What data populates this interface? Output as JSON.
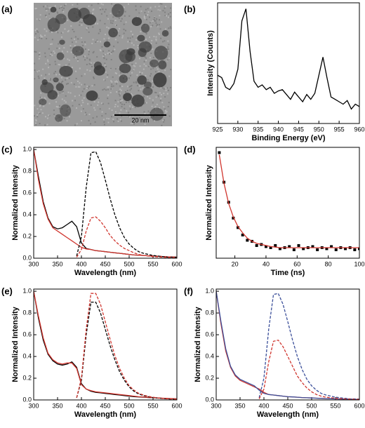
{
  "chart_data": [
    {
      "type": "image",
      "panel_label": "(a)",
      "scale_bar_label": "20 nm"
    },
    {
      "type": "line",
      "panel_label": "(b)",
      "xlabel": "Binding Energy (eV)",
      "ylabel": "Intensity (Counts)",
      "x": [
        925,
        926,
        927,
        928,
        929,
        930,
        931,
        932,
        933,
        934,
        935,
        936,
        937,
        938,
        939,
        940,
        941,
        942,
        943,
        944,
        945,
        946,
        947,
        948,
        949,
        950,
        951,
        952,
        953,
        954,
        955,
        956,
        957,
        958,
        959,
        960
      ],
      "series": [
        {
          "color": "#000000",
          "values": [
            40,
            38,
            30,
            28,
            33,
            45,
            85,
            95,
            60,
            35,
            30,
            32,
            28,
            30,
            25,
            27,
            28,
            24,
            20,
            26,
            22,
            18,
            24,
            20,
            25,
            40,
            55,
            38,
            22,
            20,
            18,
            16,
            19,
            12,
            16,
            14
          ]
        }
      ],
      "xlim": [
        925,
        960
      ],
      "xticks": [
        925,
        930,
        935,
        940,
        945,
        950,
        955,
        960
      ],
      "ylim": [
        0,
        100
      ]
    },
    {
      "type": "line",
      "panel_label": "(c)",
      "xlabel": "Wavelength (nm)",
      "ylabel": "Normalized Intensity",
      "x": [
        300,
        310,
        320,
        330,
        340,
        350,
        360,
        370,
        380,
        390,
        400,
        410,
        420,
        430,
        440,
        450,
        460,
        470,
        480,
        490,
        500,
        510,
        520,
        530,
        540,
        550,
        560,
        570,
        580,
        590,
        600
      ],
      "series": [
        {
          "color": "#000000",
          "values": [
            1.0,
            0.75,
            0.52,
            0.37,
            0.29,
            0.27,
            0.28,
            0.31,
            0.34,
            0.29,
            0.14,
            0.09,
            0.08,
            0.07,
            0.065,
            0.06,
            0.055,
            0.05,
            0.045,
            0.04,
            0.035,
            0.03,
            0.028,
            0.025,
            0.022,
            0.02,
            0.018,
            0.015,
            0.013,
            0.012,
            0.01
          ]
        },
        {
          "color": "#d0362f",
          "values": [
            1.0,
            0.72,
            0.5,
            0.36,
            0.28,
            0.25,
            0.22,
            0.19,
            0.16,
            0.13,
            0.1,
            0.085,
            0.08,
            0.07,
            0.065,
            0.06,
            0.055,
            0.05,
            0.045,
            0.04,
            0.035,
            0.03,
            0.028,
            0.025,
            0.022,
            0.02,
            0.018,
            0.015,
            0.013,
            0.012,
            0.01
          ]
        },
        {
          "color": "#000000",
          "dash": true,
          "values": [
            null,
            null,
            null,
            null,
            null,
            null,
            null,
            null,
            null,
            0.02,
            0.2,
            0.65,
            0.97,
            0.98,
            0.88,
            0.72,
            0.55,
            0.4,
            0.28,
            0.19,
            0.13,
            0.09,
            0.06,
            0.045,
            0.035,
            0.025,
            0.02,
            0.015,
            0.01,
            0.01,
            0.008
          ]
        },
        {
          "color": "#d0362f",
          "dash": true,
          "values": [
            null,
            null,
            null,
            null,
            null,
            null,
            null,
            null,
            null,
            0.01,
            0.08,
            0.25,
            0.37,
            0.38,
            0.34,
            0.28,
            0.21,
            0.16,
            0.12,
            0.09,
            0.07,
            0.05,
            0.035,
            0.025,
            0.02,
            0.015,
            0.012,
            0.01,
            0.008,
            0.006,
            0.005
          ]
        }
      ],
      "xlim": [
        300,
        600
      ],
      "xticks": [
        300,
        350,
        400,
        450,
        500,
        550,
        600
      ],
      "ylim": [
        0,
        1.02
      ],
      "yticks": [
        {
          "value": 0,
          "label": "0.0"
        },
        0.2,
        0.4,
        0.6,
        0.8,
        {
          "value": 1,
          "label": "1.0"
        }
      ]
    },
    {
      "type": "line",
      "panel_label": "(d)",
      "xlabel": "Time (ns)",
      "ylabel": "Normalized Intensity",
      "x": [
        10,
        13,
        16,
        19,
        22,
        25,
        28,
        31,
        34,
        37,
        40,
        43,
        46,
        49,
        52,
        55,
        58,
        61,
        64,
        67,
        70,
        73,
        76,
        79,
        82,
        85,
        88,
        91,
        94,
        97,
        100
      ],
      "series": [
        {
          "color": "#000000",
          "kind": "scatter",
          "values": [
            1.0,
            0.72,
            0.53,
            0.38,
            0.29,
            0.22,
            0.17,
            0.16,
            0.12,
            0.13,
            0.11,
            0.1,
            0.12,
            0.09,
            0.1,
            0.11,
            0.08,
            0.12,
            0.09,
            0.1,
            0.11,
            0.08,
            0.1,
            0.09,
            0.11,
            0.08,
            0.1,
            0.09,
            0.1,
            0.08,
            0.09
          ]
        },
        {
          "color": "#d0362f",
          "values": [
            0.98,
            0.71,
            0.52,
            0.39,
            0.3,
            0.24,
            0.19,
            0.16,
            0.14,
            0.13,
            0.12,
            0.11,
            0.105,
            0.1,
            0.1,
            0.1,
            0.1,
            0.1,
            0.1,
            0.1,
            0.1,
            0.1,
            0.1,
            0.1,
            0.1,
            0.1,
            0.1,
            0.1,
            0.1,
            0.1,
            0.1
          ]
        }
      ],
      "xlim": [
        8,
        100
      ],
      "xticks": [
        20,
        40,
        60,
        80,
        100
      ],
      "ylim": [
        0,
        1.05
      ]
    },
    {
      "type": "line",
      "panel_label": "(e)",
      "xlabel": "Wavelength (nm)",
      "ylabel": "Normalized Intensity",
      "x": [
        300,
        310,
        320,
        330,
        340,
        350,
        360,
        370,
        380,
        390,
        400,
        410,
        420,
        430,
        440,
        450,
        460,
        470,
        480,
        490,
        500,
        510,
        520,
        530,
        540,
        550,
        560,
        570,
        580,
        590,
        600
      ],
      "series": [
        {
          "color": "#000000",
          "values": [
            1.0,
            0.75,
            0.55,
            0.42,
            0.36,
            0.33,
            0.32,
            0.33,
            0.35,
            0.3,
            0.15,
            0.1,
            0.08,
            0.07,
            0.065,
            0.06,
            0.055,
            0.05,
            0.045,
            0.04,
            0.035,
            0.03,
            0.028,
            0.025,
            0.022,
            0.02,
            0.018,
            0.015,
            0.013,
            0.012,
            0.01
          ]
        },
        {
          "color": "#d0362f",
          "values": [
            1.0,
            0.77,
            0.57,
            0.43,
            0.37,
            0.34,
            0.33,
            0.34,
            0.34,
            0.29,
            0.14,
            0.1,
            0.085,
            0.075,
            0.07,
            0.065,
            0.06,
            0.055,
            0.05,
            0.045,
            0.04,
            0.035,
            0.03,
            0.027,
            0.024,
            0.021,
            0.019,
            0.016,
            0.014,
            0.012,
            0.01
          ]
        },
        {
          "color": "#000000",
          "dash": true,
          "values": [
            null,
            null,
            null,
            null,
            null,
            null,
            null,
            null,
            null,
            0.02,
            0.18,
            0.6,
            0.9,
            0.9,
            0.8,
            0.65,
            0.5,
            0.37,
            0.26,
            0.18,
            0.12,
            0.08,
            0.055,
            0.04,
            0.03,
            0.022,
            0.017,
            0.013,
            0.01,
            0.008,
            0.007
          ]
        },
        {
          "color": "#d0362f",
          "dash": true,
          "values": [
            null,
            null,
            null,
            null,
            null,
            null,
            null,
            null,
            null,
            0.02,
            0.2,
            0.65,
            0.98,
            0.98,
            0.88,
            0.72,
            0.56,
            0.41,
            0.29,
            0.2,
            0.13,
            0.09,
            0.06,
            0.045,
            0.033,
            0.025,
            0.018,
            0.014,
            0.011,
            0.009,
            0.007
          ]
        }
      ],
      "xlim": [
        300,
        600
      ],
      "xticks": [
        300,
        350,
        400,
        450,
        500,
        550,
        600
      ],
      "ylim": [
        0,
        1.02
      ],
      "yticks": [
        {
          "value": 0,
          "label": "0.0"
        },
        0.2,
        0.4,
        0.6,
        0.8,
        {
          "value": 1,
          "label": "1.0"
        }
      ]
    },
    {
      "type": "line",
      "panel_label": "(f)",
      "xlabel": "Wavelength (nm)",
      "ylabel": "Normalized Intensity",
      "x": [
        300,
        310,
        320,
        330,
        340,
        350,
        360,
        370,
        380,
        390,
        400,
        410,
        420,
        430,
        440,
        450,
        460,
        470,
        480,
        490,
        500,
        510,
        520,
        530,
        540,
        550,
        560,
        570,
        580,
        590,
        600
      ],
      "series": [
        {
          "color": "#d0362f",
          "values": [
            1.0,
            0.7,
            0.45,
            0.3,
            0.22,
            0.18,
            0.16,
            0.14,
            0.12,
            0.1,
            0.07,
            0.05,
            0.045,
            0.04,
            0.035,
            0.03,
            0.028,
            0.025,
            0.022,
            0.02,
            0.018,
            0.016,
            0.014,
            0.012,
            0.011,
            0.01,
            0.009,
            0.008,
            0.007,
            0.006,
            0.005
          ]
        },
        {
          "color": "#3b4f9a",
          "values": [
            1.0,
            0.72,
            0.47,
            0.31,
            0.23,
            0.19,
            0.17,
            0.15,
            0.13,
            0.09,
            0.06,
            0.05,
            0.045,
            0.04,
            0.035,
            0.03,
            0.028,
            0.025,
            0.022,
            0.02,
            0.018,
            0.016,
            0.014,
            0.012,
            0.011,
            0.01,
            0.009,
            0.008,
            0.007,
            0.006,
            0.005
          ]
        },
        {
          "color": "#3b4f9a",
          "dash": true,
          "values": [
            null,
            null,
            null,
            null,
            null,
            null,
            null,
            null,
            null,
            0.02,
            0.2,
            0.65,
            0.97,
            0.98,
            0.88,
            0.72,
            0.55,
            0.4,
            0.28,
            0.19,
            0.13,
            0.09,
            0.06,
            0.045,
            0.035,
            0.025,
            0.02,
            0.015,
            0.01,
            0.01,
            0.008
          ]
        },
        {
          "color": "#d0362f",
          "dash": true,
          "values": [
            null,
            null,
            null,
            null,
            null,
            null,
            null,
            null,
            null,
            0.01,
            0.1,
            0.35,
            0.54,
            0.55,
            0.49,
            0.4,
            0.31,
            0.22,
            0.16,
            0.11,
            0.075,
            0.05,
            0.035,
            0.025,
            0.02,
            0.015,
            0.012,
            0.009,
            0.007,
            0.006,
            0.005
          ]
        }
      ],
      "xlim": [
        300,
        600
      ],
      "xticks": [
        300,
        350,
        400,
        450,
        500,
        550,
        600
      ],
      "ylim": [
        0,
        1.02
      ],
      "yticks": [
        {
          "value": 0,
          "label": "0.0"
        },
        0.2,
        0.4,
        0.6,
        0.8,
        {
          "value": 1,
          "label": "1.0"
        }
      ]
    }
  ]
}
